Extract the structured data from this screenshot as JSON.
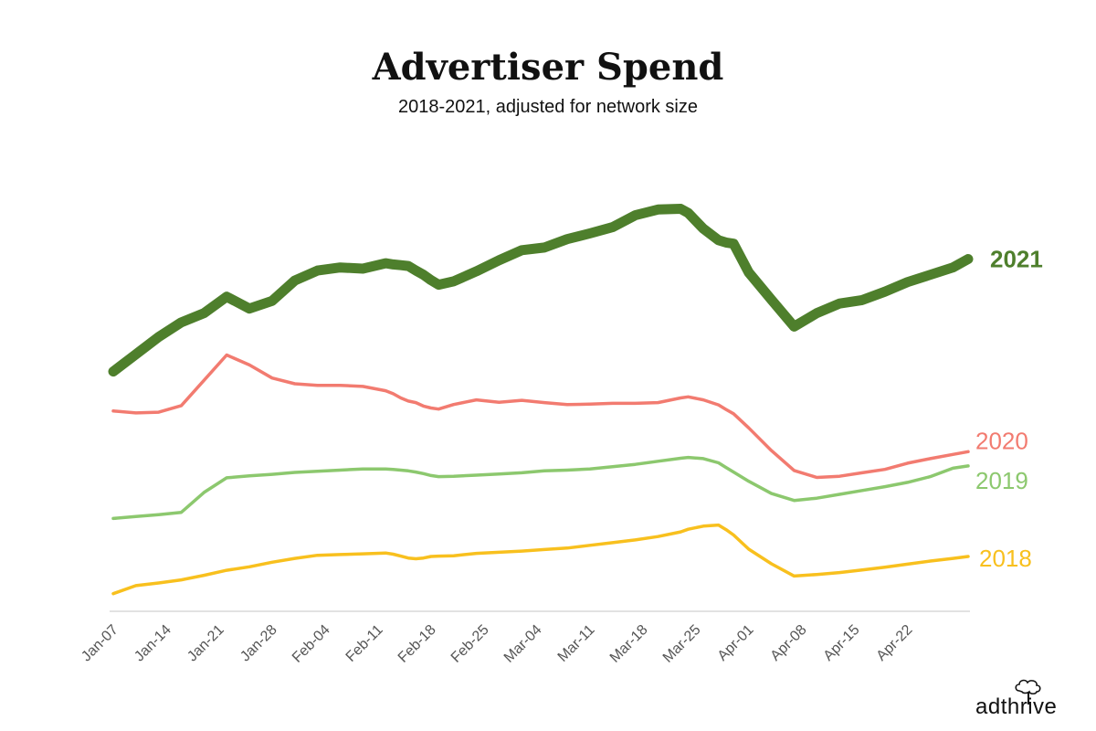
{
  "chart_data": {
    "type": "line",
    "title": "Advertiser Spend",
    "subtitle": "2018-2021, adjusted for network size",
    "xlabel": "",
    "ylabel": "",
    "categories": [
      "Jan-07",
      "Jan-14",
      "Jan-21",
      "Jan-28",
      "Feb-04",
      "Feb-11",
      "Feb-18",
      "Feb-25",
      "Mar-04",
      "Mar-11",
      "Mar-18",
      "Mar-25",
      "Apr-01",
      "Apr-08",
      "Apr-15",
      "Apr-22"
    ],
    "x": [
      0,
      3,
      6,
      9,
      12,
      15,
      18,
      21,
      24,
      27,
      30,
      33,
      36,
      37,
      38,
      39,
      40,
      41,
      42,
      43,
      45,
      48,
      51,
      54,
      57,
      60,
      63,
      66,
      69,
      72,
      75,
      76,
      78,
      80,
      81,
      82,
      84,
      87,
      90,
      93,
      96,
      99,
      102,
      105,
      108,
      111,
      113
    ],
    "ylim": [
      0,
      100
    ],
    "grid": false,
    "legend": "inline-right",
    "series": [
      {
        "name": "2021",
        "label": "2021",
        "color": "#4e7f2c",
        "width": 11,
        "values": [
          53.2,
          57.7,
          62.2,
          66.0,
          68.4,
          72.7,
          69.6,
          71.6,
          76.9,
          79.5,
          80.3,
          80.0,
          81.4,
          81.1,
          80.9,
          80.7,
          79.5,
          78.4,
          77.0,
          75.8,
          76.7,
          79.3,
          82.2,
          84.8,
          85.5,
          87.7,
          89.2,
          90.8,
          93.9,
          95.4,
          95.6,
          94.5,
          90.4,
          87.4,
          86.8,
          86.5,
          79.0,
          71.9,
          64.9,
          68.4,
          70.9,
          71.8,
          74.0,
          76.5,
          78.4,
          80.3,
          82.5
        ]
      },
      {
        "name": "2020",
        "label": "2020",
        "color": "#f27b70",
        "width": 3.5,
        "values": [
          42.9,
          42.4,
          42.6,
          44.3,
          50.9,
          57.5,
          54.9,
          51.5,
          50.0,
          49.6,
          49.6,
          49.3,
          48.2,
          47.4,
          46.3,
          45.5,
          45.1,
          44.2,
          43.7,
          43.4,
          44.6,
          45.8,
          45.2,
          45.7,
          45.1,
          44.6,
          44.7,
          44.9,
          44.9,
          45.1,
          46.3,
          46.6,
          45.8,
          44.5,
          43.3,
          42.2,
          38.5,
          32.6,
          27.4,
          25.6,
          25.9,
          26.8,
          27.7,
          29.3,
          30.5,
          31.6,
          32.3
        ]
      },
      {
        "name": "2019",
        "label": "2019",
        "color": "#8cc86e",
        "width": 3.5,
        "values": [
          14.9,
          15.4,
          15.9,
          16.5,
          21.7,
          25.5,
          26.0,
          26.4,
          26.9,
          27.2,
          27.5,
          27.8,
          27.8,
          27.7,
          27.5,
          27.3,
          27.0,
          26.6,
          26.1,
          25.8,
          25.9,
          26.2,
          26.5,
          26.8,
          27.3,
          27.5,
          27.8,
          28.4,
          29.0,
          29.8,
          30.6,
          30.8,
          30.5,
          29.4,
          28.2,
          27.0,
          24.6,
          21.4,
          19.6,
          20.2,
          21.2,
          22.2,
          23.2,
          24.3,
          25.8,
          28.0,
          28.6
        ]
      },
      {
        "name": "2018",
        "label": "2018",
        "color": "#f8c01e",
        "width": 3.5,
        "values": [
          -4.7,
          -2.6,
          -1.9,
          -1.1,
          0.1,
          1.4,
          2.3,
          3.5,
          4.5,
          5.3,
          5.5,
          5.7,
          5.9,
          5.6,
          5.1,
          4.6,
          4.4,
          4.6,
          5.0,
          5.1,
          5.2,
          5.8,
          6.1,
          6.4,
          6.8,
          7.2,
          7.9,
          8.6,
          9.3,
          10.2,
          11.4,
          12.1,
          12.9,
          13.2,
          12.0,
          10.6,
          6.9,
          3.1,
          -0.1,
          0.3,
          0.8,
          1.5,
          2.2,
          3.0,
          3.8,
          4.5,
          5.0
        ]
      }
    ],
    "y_scale": {
      "first_scaled": [
        -4.7,
        53.2
      ],
      "second_scaled": [
        57.3,
        15.6
      ]
    }
  },
  "logo": {
    "text": "adthrive"
  }
}
